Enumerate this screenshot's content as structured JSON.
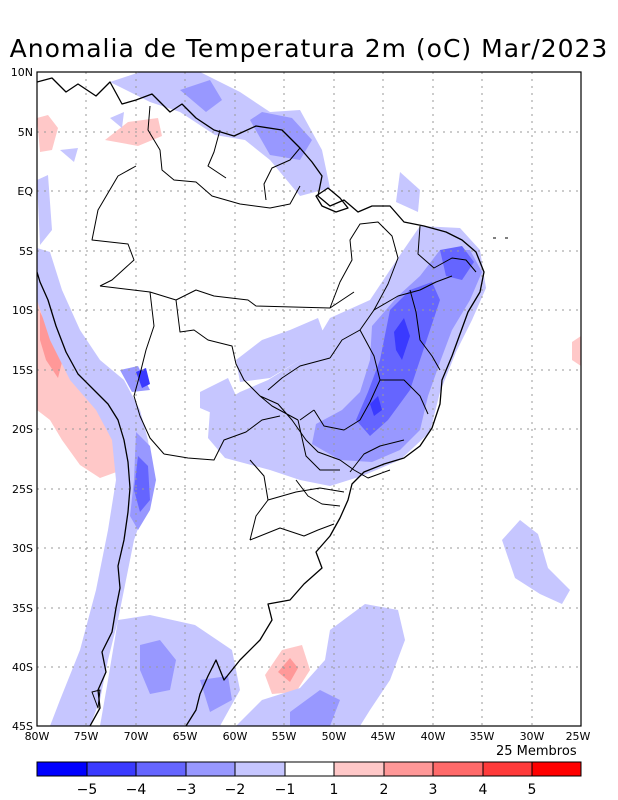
{
  "title": "Anomalia de Temperatura 2m (oC) Mar/2023",
  "members_label": "25 Membros",
  "axes": {
    "lat_labels": [
      "10N",
      "5N",
      "EQ",
      "5S",
      "10S",
      "15S",
      "20S",
      "25S",
      "30S",
      "35S",
      "40S",
      "45S"
    ],
    "lon_labels": [
      "80W",
      "75W",
      "70W",
      "65W",
      "60W",
      "55W",
      "50W",
      "45W",
      "40W",
      "35W",
      "30W",
      "25W"
    ]
  },
  "colorbar": {
    "colors": [
      "#0000ff",
      "#3a3aff",
      "#6565ff",
      "#9898ff",
      "#c6c6ff",
      "#ffffff",
      "#ffc8c8",
      "#ff9898",
      "#ff6a6a",
      "#ff3a3a",
      "#ff0000"
    ],
    "labels": [
      "−5",
      "−4",
      "−3",
      "−2",
      "−1",
      "1",
      "2",
      "3",
      "4",
      "5"
    ]
  },
  "palette": {
    "grid": "#9a9a9a",
    "coast": "#000000"
  }
}
